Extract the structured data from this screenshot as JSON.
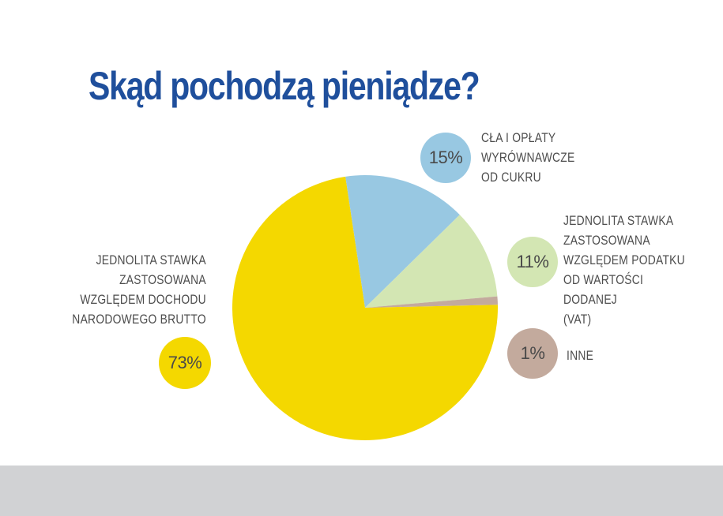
{
  "chart_data": {
    "type": "pie",
    "title": "Skąd pochodzą pieniądze?",
    "slices": [
      {
        "label": "JEDNOLITA STAWKA\nZASTOSOWANA\nWZGLĘDEM DOCHODU\nNARODOWEGO BRUTTO",
        "value": 73,
        "display": "73%",
        "color": "#f4d800"
      },
      {
        "label": "CŁA I OPŁATY\nWYRÓWNAWCZE\nOD CUKRU",
        "value": 15,
        "display": "15%",
        "color": "#98c8e2"
      },
      {
        "label": "JEDNOLITA STAWKA\nZASTOSOWANA\nWZGLĘDEM PODATKU\nOD WARTOŚCI DODANEJ\n(VAT)",
        "value": 11,
        "display": "11%",
        "color": "#d3e6b3"
      },
      {
        "label": "INNE",
        "value": 1,
        "display": "1%",
        "color": "#c3aa9d"
      }
    ]
  }
}
